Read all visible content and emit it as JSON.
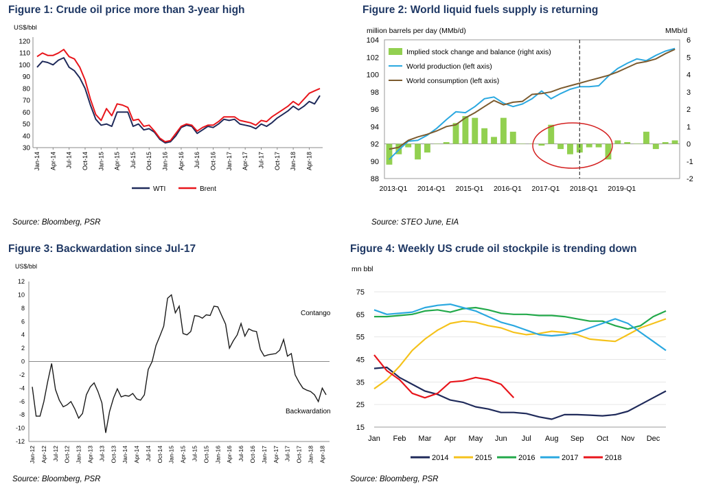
{
  "charts": [
    {
      "title": "Figure 1: Crude oil price more than 3-year high",
      "source": "Source: Bloomberg, PSR",
      "chart_data": {
        "type": "line",
        "ylabel": "US$/bbl",
        "ylim": [
          30,
          120
        ],
        "yticks": [
          30,
          40,
          50,
          60,
          70,
          80,
          90,
          100,
          110,
          120
        ],
        "x_tick_labels": [
          "Jan-14",
          "Apr-14",
          "Jul-14",
          "Oct-14",
          "Jan-15",
          "Apr-15",
          "Jul-15",
          "Oct-15",
          "Jan-16",
          "Apr-16",
          "Jul-16",
          "Oct-16",
          "Jan-17",
          "Apr-17",
          "Jul-17",
          "Oct-17",
          "Jan-18",
          "Apr-18"
        ],
        "legend_position": "bottom",
        "series": [
          {
            "name": "WTI",
            "color": "#1f2a5a",
            "values": [
              98,
              103,
              102,
              100,
              104,
              106,
              98,
              95,
              89,
              80,
              66,
              54,
              49,
              50,
              48,
              60,
              60,
              60,
              48,
              50,
              45,
              46,
              43,
              37,
              34,
              35,
              40,
              47,
              49,
              48,
              42,
              45,
              48,
              47,
              50,
              54,
              53,
              54,
              50,
              49,
              48,
              46,
              50,
              48,
              51,
              55,
              58,
              61,
              65,
              62,
              65,
              69,
              67,
              74
            ]
          },
          {
            "name": "Brent",
            "color": "#e8151b",
            "values": [
              107,
              110,
              108,
              108,
              110,
              113,
              107,
              105,
              98,
              87,
              71,
              58,
              53,
              63,
              57,
              67,
              66,
              64,
              53,
              54,
              48,
              49,
              44,
              38,
              35,
              36,
              42,
              48,
              50,
              49,
              44,
              47,
              49,
              49,
              52,
              56,
              56,
              56,
              53,
              52,
              51,
              49,
              53,
              52,
              56,
              59,
              62,
              65,
              69,
              66,
              71,
              76,
              78,
              80
            ]
          }
        ]
      }
    },
    {
      "title": "Figure 2: World liquid fuels supply is returning",
      "source": "Source: STEO June, EIA",
      "chart_data": {
        "type": "bar",
        "ylabel_left": "million barrels per day (MMb/d)",
        "ylabel_right": "MMb/d",
        "ylim": [
          88,
          104
        ],
        "ylim_right": [
          -2,
          6
        ],
        "yticks": [
          88,
          90,
          92,
          94,
          96,
          98,
          100,
          102,
          104
        ],
        "yticks_right": [
          -2,
          -1,
          0,
          1,
          2,
          3,
          4,
          5,
          6
        ],
        "x_tick_labels": [
          "2013-Q1",
          "2014-Q1",
          "2015-Q1",
          "2016-Q1",
          "2017-Q1",
          "2018-Q1",
          "2019-Q1"
        ],
        "series": [
          {
            "name": "Implied stock change and balance (right axis)",
            "color": "#92d050",
            "axis": "right",
            "values": [
              -1.2,
              -0.6,
              -0.2,
              -0.9,
              -0.5,
              0.0,
              0.1,
              1.2,
              1.6,
              1.5,
              0.9,
              0.4,
              1.5,
              0.7,
              0.0,
              0.0,
              -0.1,
              1.1,
              -0.3,
              -0.6,
              -0.5,
              -0.2,
              -0.2,
              -0.9,
              0.2,
              0.1,
              0.0,
              0.7,
              -0.3,
              0.1,
              0.2
            ]
          },
          {
            "name": "World production (left axis)",
            "color": "#2aa8e0",
            "axis": "left",
            "values": [
              90.2,
              91.3,
              92.3,
              92.4,
              93.0,
              93.8,
              94.8,
              95.7,
              95.6,
              96.3,
              97.2,
              97.4,
              96.7,
              96.3,
              96.6,
              97.2,
              98.1,
              97.2,
              97.8,
              98.3,
              98.6,
              98.6,
              98.7,
              99.8,
              100.7,
              101.3,
              101.8,
              101.6,
              102.2,
              102.7,
              103.0
            ]
          },
          {
            "name": "World consumption (left axis)",
            "color": "#7b5a2e",
            "axis": "left",
            "values": [
              91.4,
              91.6,
              92.4,
              92.8,
              93.1,
              93.5,
              94.0,
              94.2,
              95.0,
              95.6,
              96.3,
              97.0,
              96.5,
              96.8,
              96.9,
              97.7,
              97.8,
              98.0,
              98.4,
              98.7,
              99.0,
              99.3,
              99.6,
              99.9,
              100.3,
              100.8,
              101.3,
              101.5,
              101.8,
              102.4,
              102.9
            ]
          }
        ],
        "annotations": [
          "forecast divider at 2018-Q1",
          "circled negative stock changes 2017"
        ]
      }
    },
    {
      "title": "Figure 3: Backwardation since Jul-17",
      "source": "Source: Bloomberg, PSR",
      "chart_data": {
        "type": "line",
        "ylabel": "US$/bbl",
        "ylim": [
          -12,
          12
        ],
        "yticks": [
          -12,
          -10,
          -8,
          -6,
          -4,
          -2,
          0,
          2,
          4,
          6,
          8,
          10,
          12
        ],
        "x_tick_labels": [
          "Jan-12",
          "Apr-12",
          "Jul-12",
          "Oct-12",
          "Jan-13",
          "Apr-13",
          "Jul-13",
          "Oct-13",
          "Jan-14",
          "Apr-14",
          "Jul-14",
          "Oct-14",
          "Jan-15",
          "Apr-15",
          "Jul-15",
          "Oct-15",
          "Jan-16",
          "Apr-16",
          "Jul-16",
          "Oct-16",
          "Jan-17",
          "Apr-17",
          "Jul-17",
          "Oct-17",
          "Jan-18",
          "Apr-18"
        ],
        "annotations": [
          "Contango",
          "Backwardation"
        ],
        "series": [
          {
            "name": "",
            "color": "#1a1a1a",
            "values": [
              -3.8,
              -8.2,
              -8.2,
              -6.0,
              -3.0,
              -0.3,
              -4.2,
              -5.8,
              -6.8,
              -6.5,
              -6.0,
              -7.1,
              -8.5,
              -7.8,
              -5.0,
              -3.8,
              -3.2,
              -4.5,
              -6.2,
              -10.7,
              -7.5,
              -5.5,
              -4.1,
              -5.3,
              -5.1,
              -5.2,
              -4.8,
              -5.6,
              -5.8,
              -5.0,
              -1.2,
              0.0,
              2.4,
              3.8,
              5.3,
              9.5,
              10.0,
              7.3,
              8.3,
              4.2,
              4.0,
              4.5,
              6.9,
              6.8,
              6.5,
              7.0,
              6.9,
              8.3,
              8.2,
              6.9,
              5.6,
              2.0,
              3.1,
              4.0,
              5.7,
              3.8,
              4.9,
              4.6,
              4.5,
              1.8,
              0.8,
              1.0,
              1.1,
              1.2,
              1.7,
              3.3,
              0.8,
              1.2,
              -2.0,
              -3.1,
              -4.0,
              -4.3,
              -4.5,
              -5.0,
              -6.0,
              -4.0,
              -5.0
            ]
          }
        ]
      }
    },
    {
      "title": "Figure 4: Weekly US crude oil stockpile is trending down",
      "source": "Source: Bloomberg, PSR",
      "chart_data": {
        "type": "line",
        "ylabel": "mn bbl",
        "ylim": [
          15,
          75
        ],
        "yticks": [
          15,
          25,
          35,
          45,
          55,
          65,
          75
        ],
        "x_tick_labels": [
          "Jan",
          "Feb",
          "Mar",
          "Apr",
          "May",
          "Jun",
          "Jul",
          "Aug",
          "Sep",
          "Oct",
          "Nov",
          "Dec"
        ],
        "legend_position": "bottom",
        "series": [
          {
            "name": "2014",
            "color": "#1f2a5a",
            "x": [
              0,
              0.5,
              1,
              1.5,
              2,
              2.5,
              3,
              3.5,
              4,
              4.5,
              5,
              5.5,
              6,
              6.5,
              7,
              7.5,
              8,
              8.5,
              9,
              9.5,
              10,
              10.5,
              11,
              11.5
            ],
            "values": [
              41,
              41.5,
              37,
              34,
              31,
              29.5,
              27,
              26,
              24,
              23,
              21.5,
              21.5,
              21,
              19.5,
              18.5,
              20.5,
              20.5,
              20.3,
              20,
              20.5,
              22,
              25,
              28,
              31
            ]
          },
          {
            "name": "2015",
            "color": "#f5c21b",
            "x": [
              0,
              0.5,
              1,
              1.5,
              2,
              2.5,
              3,
              3.5,
              4,
              4.5,
              5,
              5.5,
              6,
              6.5,
              7,
              7.5,
              8,
              8.5,
              9,
              9.5,
              10,
              10.5,
              11,
              11.5
            ],
            "values": [
              32,
              36,
              42,
              49,
              54,
              58,
              61,
              62,
              61.5,
              60,
              59,
              57,
              56,
              56.5,
              57.5,
              57,
              56,
              54,
              53.5,
              53,
              56,
              59,
              61,
              63
            ]
          },
          {
            "name": "2016",
            "color": "#22a94a",
            "x": [
              0,
              0.5,
              1,
              1.5,
              2,
              2.5,
              3,
              3.5,
              4,
              4.5,
              5,
              5.5,
              6,
              6.5,
              7,
              7.5,
              8,
              8.5,
              9,
              9.5,
              10,
              10.5,
              11,
              11.5
            ],
            "values": [
              64,
              64,
              64.5,
              65,
              66.5,
              67,
              66,
              67.5,
              68,
              67,
              65.5,
              65,
              65,
              64.5,
              64.5,
              64,
              63,
              62,
              62,
              60,
              58.5,
              60,
              64,
              66.5
            ]
          },
          {
            "name": "2017",
            "color": "#2aa8e0",
            "x": [
              0,
              0.5,
              1,
              1.5,
              2,
              2.5,
              3,
              3.5,
              4,
              4.5,
              5,
              5.5,
              6,
              6.5,
              7,
              7.5,
              8,
              8.5,
              9,
              9.5,
              10,
              10.5,
              11,
              11.5
            ],
            "values": [
              67,
              65,
              65.5,
              66,
              68,
              69,
              69.5,
              68,
              66.5,
              64,
              61.5,
              60,
              58,
              56,
              55.5,
              56,
              57,
              59,
              61,
              63,
              61,
              57,
              53,
              49
            ]
          },
          {
            "name": "2018",
            "color": "#e8151b",
            "x": [
              0,
              0.5,
              1,
              1.5,
              2,
              2.5,
              3,
              3.5,
              4,
              4.5,
              5,
              5.5
            ],
            "values": [
              47,
              40,
              36,
              30,
              28,
              30,
              35,
              35.5,
              37,
              36,
              34,
              28
            ]
          }
        ]
      }
    }
  ]
}
